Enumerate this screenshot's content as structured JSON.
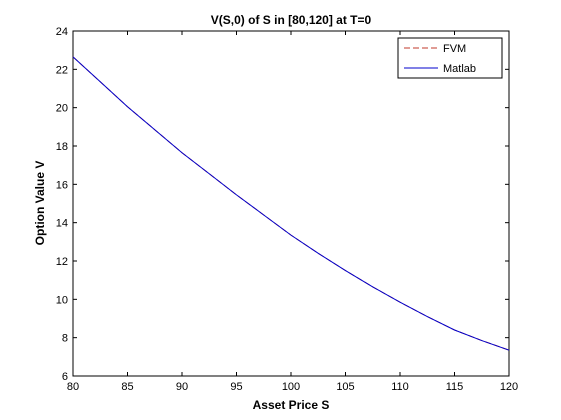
{
  "chart_data": {
    "type": "line",
    "title": "V(S,0) of S in [80,120] at T=0",
    "xlabel": "Asset Price S",
    "ylabel": "Option Value V",
    "xlim": [
      80,
      120
    ],
    "ylim": [
      6,
      24
    ],
    "xticks": [
      80,
      85,
      90,
      95,
      100,
      105,
      110,
      115,
      120
    ],
    "yticks": [
      6,
      8,
      10,
      12,
      14,
      16,
      18,
      20,
      22,
      24
    ],
    "grid": false,
    "legend": {
      "position": "top-right"
    },
    "x": [
      80,
      82.5,
      85,
      87.5,
      90,
      92.5,
      95,
      97.5,
      100,
      102.5,
      105,
      107.5,
      110,
      112.5,
      115,
      117.5,
      120
    ],
    "series": [
      {
        "name": "FVM",
        "color": "#c0392b",
        "style": "dashed",
        "values": [
          22.65,
          21.35,
          20.05,
          18.85,
          17.65,
          16.55,
          15.45,
          14.4,
          13.35,
          12.4,
          11.5,
          10.65,
          9.85,
          9.1,
          8.4,
          7.85,
          7.35
        ]
      },
      {
        "name": "Matlab",
        "color": "#0000cc",
        "style": "solid",
        "values": [
          22.65,
          21.35,
          20.05,
          18.85,
          17.65,
          16.55,
          15.45,
          14.4,
          13.35,
          12.4,
          11.5,
          10.65,
          9.85,
          9.1,
          8.4,
          7.85,
          7.35
        ]
      }
    ]
  }
}
